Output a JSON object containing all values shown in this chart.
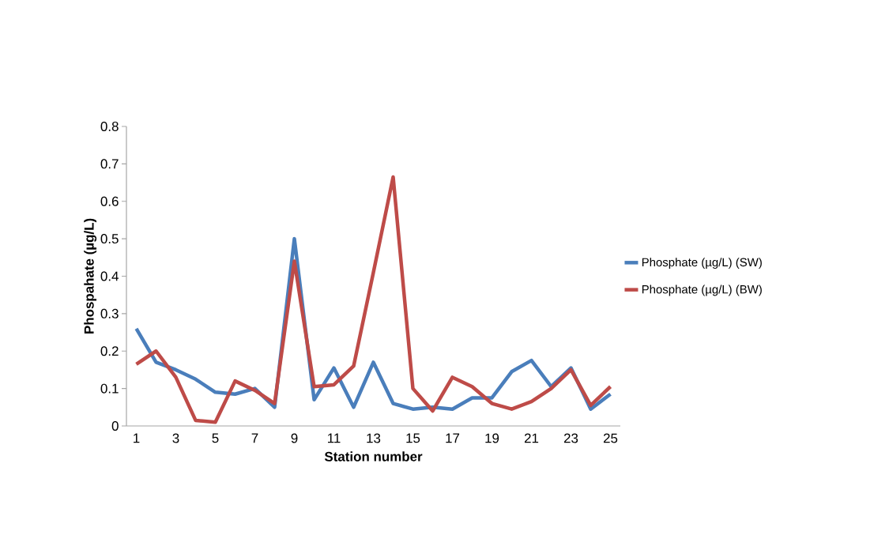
{
  "chart_data": {
    "type": "line",
    "xlabel": "Station number",
    "ylabel": "Phospahate (µg/L)",
    "categories": [
      "1",
      null,
      "3",
      null,
      "5",
      null,
      "7",
      null,
      "9",
      null,
      "11",
      null,
      "13",
      null,
      "15",
      null,
      "17",
      null,
      "19",
      null,
      "21",
      null,
      "23",
      null,
      "25"
    ],
    "series": [
      {
        "name": "Phosphate (µg/L) (SW)",
        "color": "#4a7ebb",
        "values": [
          0.26,
          0.17,
          0.15,
          0.125,
          0.09,
          0.085,
          0.1,
          0.05,
          0.5,
          0.07,
          0.155,
          0.05,
          0.17,
          0.06,
          0.045,
          0.05,
          0.045,
          0.075,
          0.075,
          0.145,
          0.175,
          0.105,
          0.155,
          0.045,
          0.085
        ]
      },
      {
        "name": "Phosphate (µg/L) (BW)",
        "color": "#be4b48",
        "values": [
          0.165,
          0.2,
          0.13,
          0.015,
          0.01,
          0.12,
          0.095,
          0.06,
          0.44,
          0.105,
          0.11,
          0.16,
          0.41,
          0.665,
          0.1,
          0.04,
          0.13,
          0.105,
          0.06,
          0.045,
          0.065,
          0.1,
          0.15,
          0.055,
          0.105
        ]
      }
    ],
    "ylim": [
      0,
      0.8
    ],
    "yticks": [
      0,
      0.1,
      0.2,
      0.3,
      0.4,
      0.5,
      0.6,
      0.7,
      0.8
    ],
    "grid": false,
    "legend": "right",
    "marker": "none",
    "line_style": "solid"
  }
}
